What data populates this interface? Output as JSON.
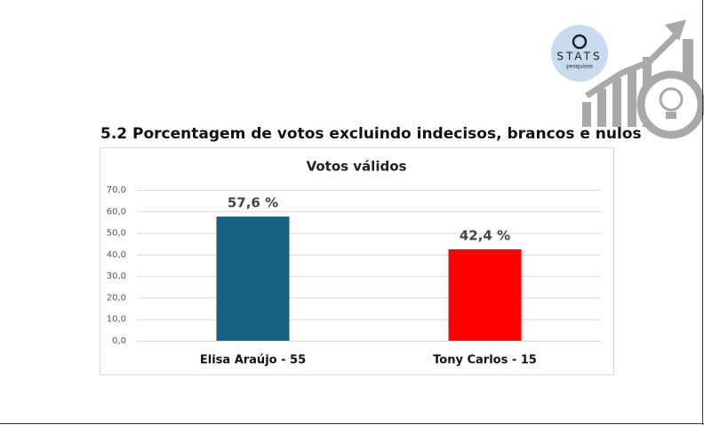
{
  "heading": "5.2 Porcentagem de votos excluindo indecisos, brancos e nulos",
  "logo": {
    "name": "STATS",
    "sub": "pesquisas"
  },
  "chart_data": {
    "type": "bar",
    "title": "Votos válidos",
    "categories": [
      "Elisa Araújo - 55",
      "Tony Carlos - 15"
    ],
    "values": [
      57.6,
      42.4
    ],
    "value_labels": [
      "57,6 %",
      "42,4 %"
    ],
    "colors": [
      "#17607f",
      "#ff0000"
    ],
    "ylim": [
      0,
      70
    ],
    "yticks": [
      {
        "value": 0,
        "label": "0,0"
      },
      {
        "value": 10,
        "label": "10,0"
      },
      {
        "value": 20,
        "label": "20,0"
      },
      {
        "value": 30,
        "label": "30,0"
      },
      {
        "value": 40,
        "label": "40,0"
      },
      {
        "value": 50,
        "label": "50,0"
      },
      {
        "value": 60,
        "label": "60,0"
      },
      {
        "value": 70,
        "label": "70,0"
      }
    ],
    "grid": true
  }
}
